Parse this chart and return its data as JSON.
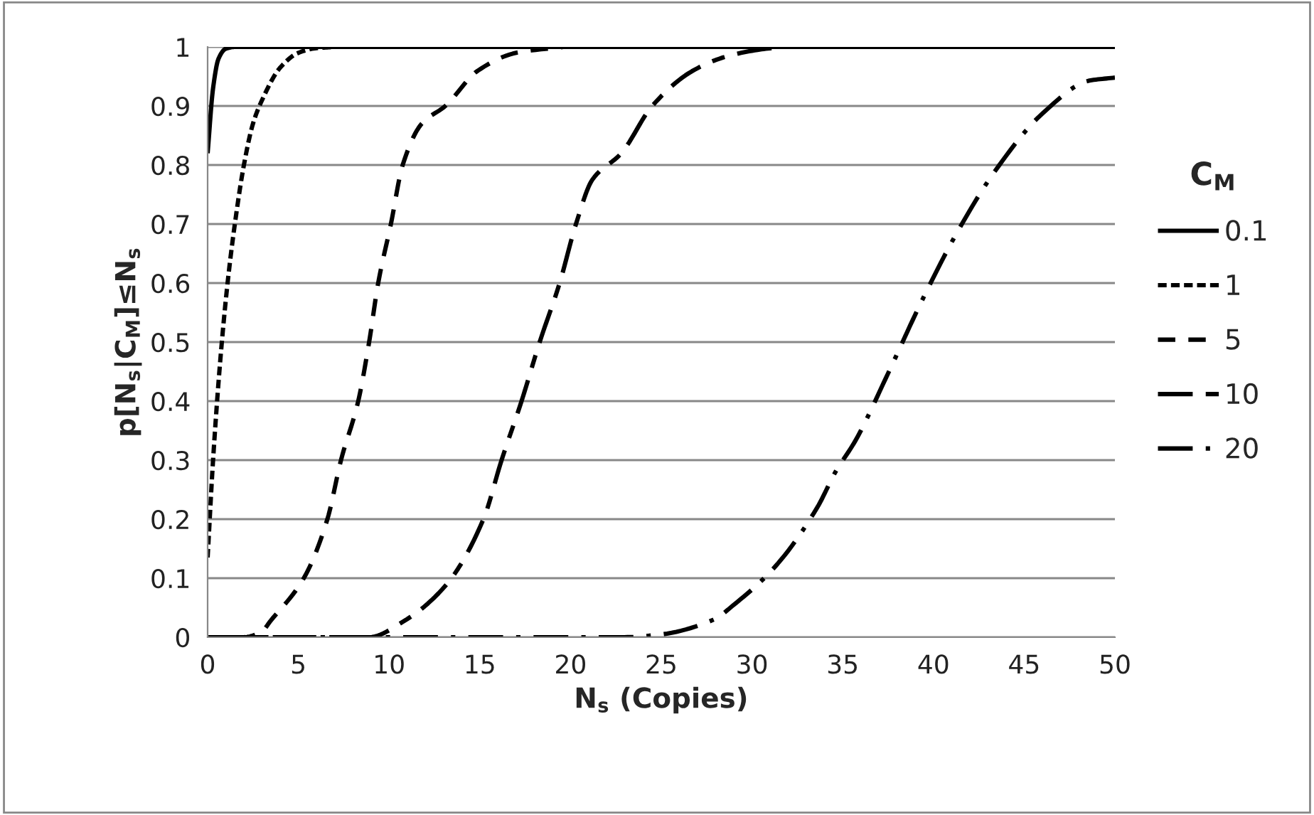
{
  "chart_data": {
    "type": "line",
    "xlabel": "N$_{s}$ (Copies)",
    "ylabel": "p[N$_{s}$|C$_{M}$]≤N$_{s}$",
    "legend_title": "C$_{M}$",
    "legend": "right",
    "grid": "y",
    "xlim": [
      0,
      50
    ],
    "ylim": [
      0,
      1
    ],
    "xticks": [
      0,
      5,
      10,
      15,
      20,
      25,
      30,
      35,
      40,
      45,
      50
    ],
    "yticks": [
      0,
      {
        "value": 0.1,
        "label": "0.1"
      },
      {
        "value": 0.2,
        "label": "0.2"
      },
      {
        "value": 0.3,
        "label": "0.3"
      },
      {
        "value": 0.4,
        "label": "0.4"
      },
      {
        "value": 0.5,
        "label": "0.5"
      },
      {
        "value": 0.6,
        "label": "0.6"
      },
      {
        "value": 0.7,
        "label": "0.7"
      },
      {
        "value": 0.8,
        "label": "0.8"
      },
      {
        "value": 0.9,
        "label": "0.9"
      },
      1
    ],
    "series": [
      {
        "name": "0.1",
        "color": "#000000",
        "line_style": "solid",
        "x": [
          0,
          0.3,
          0.6,
          1,
          1.5,
          50
        ],
        "values": [
          0.82,
          0.93,
          0.98,
          0.997,
          1,
          1
        ]
      },
      {
        "name": "1",
        "color": "#000000",
        "line_style": "dotted",
        "x": [
          0,
          0.3,
          0.7,
          1.1,
          1.5,
          2,
          2.5,
          3,
          4,
          5,
          6,
          7
        ],
        "values": [
          0.135,
          0.3,
          0.47,
          0.6,
          0.7,
          0.8,
          0.87,
          0.91,
          0.965,
          0.99,
          0.998,
          1
        ]
      },
      {
        "name": "5",
        "color": "#000000",
        "line_style": "dashed",
        "x": [
          0,
          2,
          3,
          3.45,
          5.3,
          6.6,
          7.35,
          8.3,
          8.9,
          9.4,
          10.1,
          10.75,
          11.8,
          13.1,
          14.9,
          17,
          19.6
        ],
        "values": [
          0,
          0,
          0.01,
          0.027,
          0.1,
          0.2,
          0.3,
          0.4,
          0.5,
          0.6,
          0.7,
          0.8,
          0.87,
          0.9,
          0.96,
          0.99,
          1
        ]
      },
      {
        "name": "10",
        "color": "#000000",
        "line_style": "longdash",
        "x": [
          0,
          8.9,
          10.8,
          13.1,
          15.2,
          16.2,
          17.3,
          18.3,
          19.4,
          20.3,
          21.2,
          22.8,
          24.5,
          26.7,
          28.5,
          30.3,
          31.7
        ],
        "values": [
          0,
          0,
          0.027,
          0.087,
          0.2,
          0.3,
          0.4,
          0.5,
          0.6,
          0.7,
          0.775,
          0.82,
          0.9,
          0.959,
          0.983,
          0.995,
          1
        ]
      },
      {
        "name": "20",
        "color": "#000000",
        "line_style": "dashdot",
        "x": [
          0,
          22.8,
          24.8,
          27.9,
          29,
          31.2,
          33.6,
          34.6,
          35.7,
          37.5,
          39.3,
          41.2,
          43.4,
          46,
          48.6,
          50
        ],
        "values": [
          0,
          0,
          0.004,
          0.03,
          0.055,
          0.117,
          0.22,
          0.28,
          0.333,
          0.447,
          0.566,
          0.68,
          0.79,
          0.887,
          0.943,
          0.948
        ]
      }
    ]
  }
}
